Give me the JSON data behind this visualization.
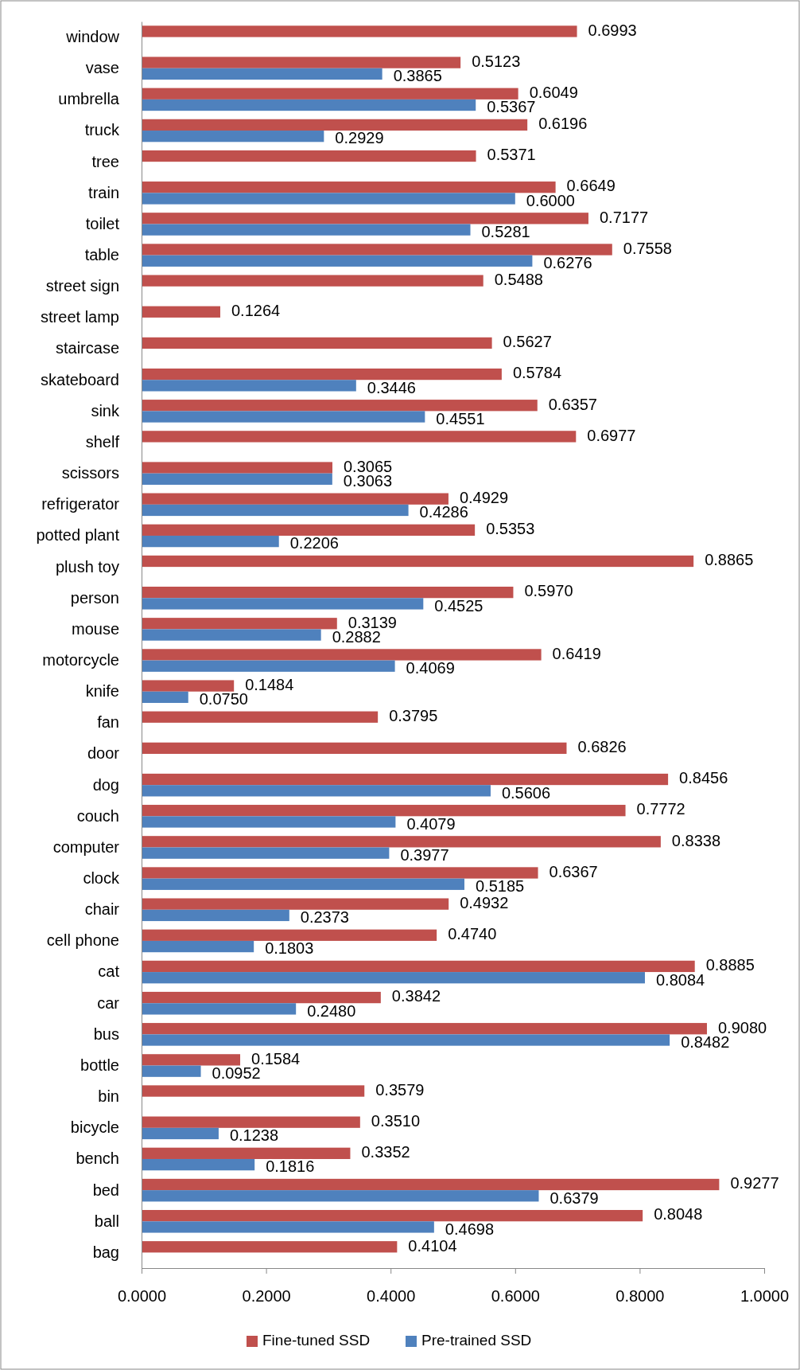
{
  "chart_data": {
    "type": "bar",
    "orientation": "horizontal",
    "categories": [
      "window",
      "vase",
      "umbrella",
      "truck",
      "tree",
      "train",
      "toilet",
      "table",
      "street sign",
      "street lamp",
      "staircase",
      "skateboard",
      "sink",
      "shelf",
      "scissors",
      "refrigerator",
      "potted plant",
      "plush toy",
      "person",
      "mouse",
      "motorcycle",
      "knife",
      "fan",
      "door",
      "dog",
      "couch",
      "computer",
      "clock",
      "chair",
      "cell phone",
      "cat",
      "car",
      "bus",
      "bottle",
      "bin",
      "bicycle",
      "bench",
      "bed",
      "ball",
      "bag"
    ],
    "series": [
      {
        "name": "Fine-tuned SSD",
        "color": "#c0504d",
        "values": [
          0.6993,
          0.5123,
          0.6049,
          0.6196,
          0.5371,
          0.6649,
          0.7177,
          0.7558,
          0.5488,
          0.1264,
          0.5627,
          0.5784,
          0.6357,
          0.6977,
          0.3065,
          0.4929,
          0.5353,
          0.8865,
          0.597,
          0.3139,
          0.6419,
          0.1484,
          0.3795,
          0.6826,
          0.8456,
          0.7772,
          0.8338,
          0.6367,
          0.4932,
          0.474,
          0.8885,
          0.3842,
          0.908,
          0.1584,
          0.3579,
          0.351,
          0.3352,
          0.9277,
          0.8048,
          0.4104
        ],
        "value_labels": [
          "0.6993",
          "0.5123",
          "0.6049",
          "0.6196",
          "0.5371",
          "0.6649",
          "0.7177",
          "0.7558",
          "0.5488",
          "0.1264",
          "0.5627",
          "0.5784",
          "0.6357",
          "0.6977",
          "0.3065",
          "0.4929",
          "0.5353",
          "0.8865",
          "0.5970",
          "0.3139",
          "0.6419",
          "0.1484",
          "0.3795",
          "0.6826",
          "0.8456",
          "0.7772",
          "0.8338",
          "0.6367",
          "0.4932",
          "0.4740",
          "0.8885",
          "0.3842",
          "0.9080",
          "0.1584",
          "0.3579",
          "0.3510",
          "0.3352",
          "0.9277",
          "0.8048",
          "0.4104"
        ]
      },
      {
        "name": "Pre-trained SSD",
        "color": "#4f81bd",
        "values": [
          null,
          0.3865,
          0.5367,
          0.2929,
          null,
          0.6,
          0.5281,
          0.6276,
          null,
          null,
          null,
          0.3446,
          0.4551,
          null,
          0.3063,
          0.4286,
          0.2206,
          null,
          0.4525,
          0.2882,
          0.4069,
          0.075,
          null,
          null,
          0.5606,
          0.4079,
          0.3977,
          0.5185,
          0.2373,
          0.1803,
          0.8084,
          0.248,
          0.8482,
          0.0952,
          null,
          0.1238,
          0.1816,
          0.6379,
          0.4698,
          null
        ],
        "value_labels": [
          null,
          "0.3865",
          "0.5367",
          "0.2929",
          null,
          "0.6000",
          "0.5281",
          "0.6276",
          null,
          null,
          null,
          "0.3446",
          "0.4551",
          null,
          "0.3063",
          "0.4286",
          "0.2206",
          null,
          "0.4525",
          "0.2882",
          "0.4069",
          "0.0750",
          null,
          null,
          "0.5606",
          "0.4079",
          "0.3977",
          "0.5185",
          "0.2373",
          "0.1803",
          "0.8084",
          "0.2480",
          "0.8482",
          "0.0952",
          null,
          "0.1238",
          "0.1816",
          "0.6379",
          "0.4698",
          null
        ]
      }
    ],
    "xlim": [
      0,
      1
    ],
    "xticks": [
      {
        "value": 0,
        "label": "0.0000"
      },
      {
        "value": 0.2,
        "label": "0.2000"
      },
      {
        "value": 0.4,
        "label": "0.4000"
      },
      {
        "value": 0.6,
        "label": "0.6000"
      },
      {
        "value": 0.8,
        "label": "0.8000"
      },
      {
        "value": 1,
        "label": "1.0000"
      }
    ],
    "legend": "bottom"
  }
}
